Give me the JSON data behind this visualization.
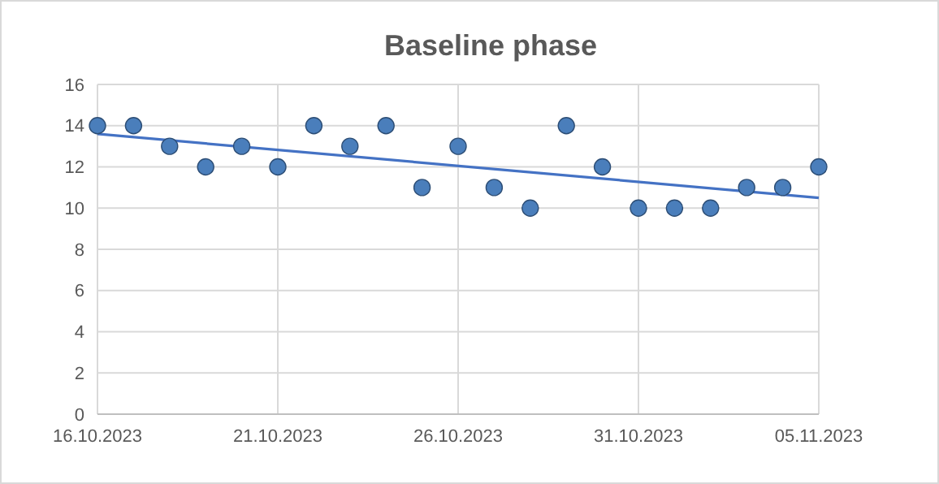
{
  "chart_data": {
    "type": "scatter",
    "title": "Baseline phase",
    "x": [
      "2023-10-16",
      "2023-10-17",
      "2023-10-18",
      "2023-10-19",
      "2023-10-20",
      "2023-10-21",
      "2023-10-22",
      "2023-10-23",
      "2023-10-24",
      "2023-10-25",
      "2023-10-26",
      "2023-10-27",
      "2023-10-28",
      "2023-10-29",
      "2023-10-30",
      "2023-10-31",
      "2023-11-01",
      "2023-11-02",
      "2023-11-03",
      "2023-11-04",
      "2023-11-05"
    ],
    "series": [
      {
        "type": "scatter",
        "color": "#4a7ebb",
        "marker": "circle",
        "values": [
          14,
          14,
          13,
          12,
          13,
          12,
          14,
          13,
          14,
          11,
          13,
          11,
          10,
          14,
          12,
          10,
          10,
          10,
          11,
          11,
          12
        ]
      },
      {
        "type": "line",
        "color": "#4472c4",
        "marker": "none",
        "line_style": "solid",
        "x": [
          "2023-10-16",
          "2023-11-05"
        ],
        "values": [
          13.6,
          10.5
        ]
      }
    ],
    "xlim": [
      "2023-10-16",
      "2023-11-05"
    ],
    "xticks": [
      {
        "value": "2023-10-16",
        "label": "16.10.2023"
      },
      {
        "value": "2023-10-21",
        "label": "21.10.2023"
      },
      {
        "value": "2023-10-26",
        "label": "26.10.2023"
      },
      {
        "value": "2023-10-31",
        "label": "31.10.2023"
      },
      {
        "value": "2023-11-05",
        "label": "05.11.2023"
      }
    ],
    "ylim": [
      0,
      16
    ],
    "yticks": [
      0,
      2,
      4,
      6,
      8,
      10,
      12,
      14,
      16
    ],
    "grid": true
  }
}
